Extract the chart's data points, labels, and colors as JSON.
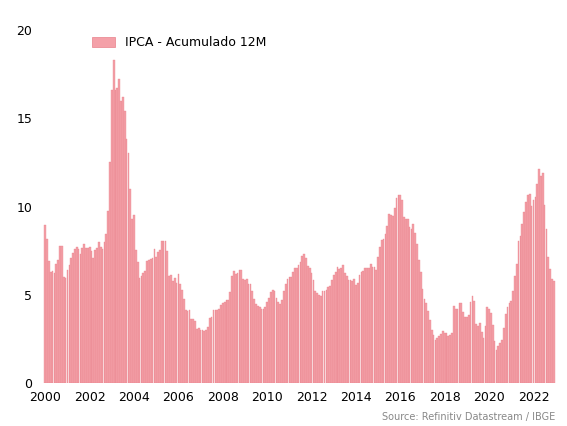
{
  "source": "Source: Refinitiv Datastream / IBGE",
  "bar_color": "#f4a0a8",
  "bar_edge_color": "#e8808a",
  "ylim": [
    0,
    20
  ],
  "yticks": [
    0,
    5,
    10,
    15,
    20
  ],
  "background_color": "#ffffff",
  "legend_label": "IPCA - Acumulado 12M",
  "legend_fontsize": 9,
  "source_fontsize": 7,
  "tick_fontsize": 9,
  "data": {
    "2000-01": 8.94,
    "2000-02": 8.15,
    "2000-03": 6.94,
    "2000-04": 6.31,
    "2000-05": 6.38,
    "2000-06": 6.23,
    "2000-07": 6.74,
    "2000-08": 6.99,
    "2000-09": 7.77,
    "2000-10": 7.78,
    "2000-11": 6.02,
    "2000-12": 5.97,
    "2001-01": 6.4,
    "2001-02": 6.71,
    "2001-03": 7.08,
    "2001-04": 7.36,
    "2001-05": 7.63,
    "2001-06": 7.69,
    "2001-07": 7.6,
    "2001-08": 7.3,
    "2001-09": 7.65,
    "2001-10": 7.89,
    "2001-11": 7.66,
    "2001-12": 7.67,
    "2002-01": 7.69,
    "2002-02": 7.5,
    "2002-03": 7.08,
    "2002-04": 7.52,
    "2002-05": 7.65,
    "2002-06": 8.0,
    "2002-07": 7.69,
    "2002-08": 7.58,
    "2002-09": 8.0,
    "2002-10": 8.45,
    "2002-11": 9.77,
    "2002-12": 12.53,
    "2003-01": 16.58,
    "2003-02": 18.29,
    "2003-03": 16.58,
    "2003-04": 16.69,
    "2003-05": 17.24,
    "2003-06": 15.98,
    "2003-07": 16.19,
    "2003-08": 15.43,
    "2003-09": 13.83,
    "2003-10": 13.01,
    "2003-11": 11.02,
    "2003-12": 9.3,
    "2004-01": 9.55,
    "2004-02": 7.55,
    "2004-03": 6.84,
    "2004-04": 5.97,
    "2004-05": 6.08,
    "2004-06": 6.25,
    "2004-07": 6.36,
    "2004-08": 6.9,
    "2004-09": 6.96,
    "2004-10": 7.01,
    "2004-11": 7.1,
    "2004-12": 7.6,
    "2005-01": 7.14,
    "2005-02": 7.41,
    "2005-03": 7.54,
    "2005-04": 8.06,
    "2005-05": 8.05,
    "2005-06": 8.05,
    "2005-07": 7.48,
    "2005-08": 6.09,
    "2005-09": 6.15,
    "2005-10": 5.78,
    "2005-11": 5.97,
    "2005-12": 5.69,
    "2006-01": 6.17,
    "2006-02": 5.63,
    "2006-03": 5.3,
    "2006-04": 4.77,
    "2006-05": 4.18,
    "2006-06": 4.08,
    "2006-07": 4.18,
    "2006-08": 3.62,
    "2006-09": 3.66,
    "2006-10": 3.54,
    "2006-11": 3.08,
    "2006-12": 3.14,
    "2007-01": 3.02,
    "2007-02": 3.04,
    "2007-03": 2.95,
    "2007-04": 3.04,
    "2007-05": 3.18,
    "2007-06": 3.69,
    "2007-07": 3.74,
    "2007-08": 4.18,
    "2007-09": 4.15,
    "2007-10": 4.16,
    "2007-11": 4.22,
    "2007-12": 4.46,
    "2008-01": 4.55,
    "2008-02": 4.61,
    "2008-03": 4.73,
    "2008-04": 4.73,
    "2008-05": 5.17,
    "2008-06": 6.07,
    "2008-07": 6.37,
    "2008-08": 6.17,
    "2008-09": 6.25,
    "2008-10": 6.41,
    "2008-11": 6.39,
    "2008-12": 5.9,
    "2009-01": 5.84,
    "2009-02": 5.9,
    "2009-03": 5.61,
    "2009-04": 5.61,
    "2009-05": 5.2,
    "2009-06": 4.8,
    "2009-07": 4.5,
    "2009-08": 4.36,
    "2009-09": 4.34,
    "2009-10": 4.22,
    "2009-11": 4.22,
    "2009-12": 4.31,
    "2010-01": 4.59,
    "2010-02": 4.83,
    "2010-03": 5.17,
    "2010-04": 5.26,
    "2010-05": 5.22,
    "2010-06": 4.84,
    "2010-07": 4.6,
    "2010-08": 4.49,
    "2010-09": 4.7,
    "2010-10": 5.2,
    "2010-11": 5.63,
    "2010-12": 5.91,
    "2011-01": 6.0,
    "2011-02": 6.01,
    "2011-03": 6.3,
    "2011-04": 6.51,
    "2011-05": 6.55,
    "2011-06": 6.71,
    "2011-07": 6.87,
    "2011-08": 7.23,
    "2011-09": 7.31,
    "2011-10": 7.09,
    "2011-11": 6.64,
    "2011-12": 6.5,
    "2012-01": 6.22,
    "2012-02": 5.85,
    "2012-03": 5.24,
    "2012-04": 5.1,
    "2012-05": 4.99,
    "2012-06": 4.92,
    "2012-07": 5.2,
    "2012-08": 5.24,
    "2012-09": 5.28,
    "2012-10": 5.45,
    "2012-11": 5.53,
    "2012-12": 5.84,
    "2013-01": 6.15,
    "2013-02": 6.31,
    "2013-03": 6.59,
    "2013-04": 6.49,
    "2013-05": 6.5,
    "2013-06": 6.7,
    "2013-07": 6.27,
    "2013-08": 6.09,
    "2013-09": 5.86,
    "2013-10": 5.84,
    "2013-11": 5.77,
    "2013-12": 5.91,
    "2014-01": 5.59,
    "2014-02": 5.68,
    "2014-03": 6.15,
    "2014-04": 6.28,
    "2014-05": 6.37,
    "2014-06": 6.52,
    "2014-07": 6.5,
    "2014-08": 6.51,
    "2014-09": 6.75,
    "2014-10": 6.59,
    "2014-11": 6.56,
    "2014-12": 6.41,
    "2015-01": 7.14,
    "2015-02": 7.7,
    "2015-03": 8.13,
    "2015-04": 8.17,
    "2015-05": 8.47,
    "2015-06": 8.89,
    "2015-07": 9.56,
    "2015-08": 9.53,
    "2015-09": 9.49,
    "2015-10": 9.93,
    "2015-11": 10.48,
    "2015-12": 10.67,
    "2016-01": 10.67,
    "2016-02": 10.36,
    "2016-03": 9.39,
    "2016-04": 9.28,
    "2016-05": 9.32,
    "2016-06": 8.84,
    "2016-07": 8.74,
    "2016-08": 9.0,
    "2016-09": 8.48,
    "2016-10": 7.87,
    "2016-11": 6.99,
    "2016-12": 6.29,
    "2017-01": 5.35,
    "2017-02": 4.76,
    "2017-03": 4.57,
    "2017-04": 4.08,
    "2017-05": 3.6,
    "2017-06": 3.0,
    "2017-07": 2.71,
    "2017-08": 2.46,
    "2017-09": 2.54,
    "2017-10": 2.7,
    "2017-11": 2.8,
    "2017-12": 2.95,
    "2018-01": 2.86,
    "2018-02": 2.84,
    "2018-03": 2.68,
    "2018-04": 2.76,
    "2018-05": 2.86,
    "2018-06": 4.39,
    "2018-07": 4.19,
    "2018-08": 4.19,
    "2018-09": 4.53,
    "2018-10": 4.56,
    "2018-11": 4.05,
    "2018-12": 3.75,
    "2019-01": 3.78,
    "2019-02": 3.89,
    "2019-03": 4.58,
    "2019-04": 4.94,
    "2019-05": 4.66,
    "2019-06": 3.37,
    "2019-07": 3.22,
    "2019-08": 3.43,
    "2019-09": 2.89,
    "2019-10": 2.54,
    "2019-11": 3.27,
    "2019-12": 4.31,
    "2020-01": 4.19,
    "2020-02": 4.01,
    "2020-03": 3.3,
    "2020-04": 2.4,
    "2020-05": 1.88,
    "2020-06": 2.13,
    "2020-07": 2.31,
    "2020-08": 2.44,
    "2020-09": 3.14,
    "2020-10": 3.92,
    "2020-11": 4.31,
    "2020-12": 4.52,
    "2021-01": 4.65,
    "2021-02": 5.2,
    "2021-03": 6.1,
    "2021-04": 6.76,
    "2021-05": 8.06,
    "2021-06": 8.35,
    "2021-07": 8.99,
    "2021-08": 9.68,
    "2021-09": 10.25,
    "2021-10": 10.67,
    "2021-11": 10.74,
    "2021-12": 10.06,
    "2022-01": 10.38,
    "2022-02": 10.54,
    "2022-03": 11.3,
    "2022-04": 12.13,
    "2022-05": 11.73,
    "2022-06": 11.89,
    "2022-07": 10.07,
    "2022-08": 8.73,
    "2022-09": 7.17,
    "2022-10": 6.47,
    "2022-11": 5.9,
    "2022-12": 5.79
  }
}
